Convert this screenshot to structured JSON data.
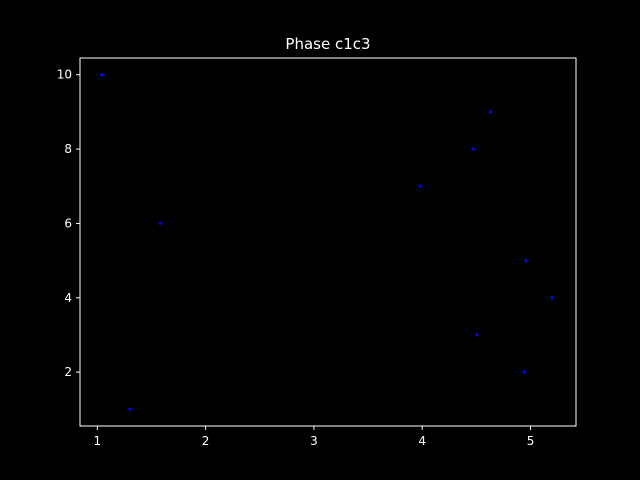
{
  "chart_data": {
    "type": "scatter",
    "title": "Phase c1c3",
    "xlabel": "",
    "ylabel": "",
    "xlim": [
      0.84,
      5.42
    ],
    "ylim": [
      0.55,
      10.45
    ],
    "xticks": [
      1,
      2,
      3,
      4,
      5
    ],
    "yticks": [
      2,
      4,
      6,
      8,
      10
    ],
    "grid": false,
    "background": "#000000",
    "axis_color": "#ffffff",
    "text_color": "#ffffff",
    "marker_color": "#0000ff",
    "series": [
      {
        "points": [
          {
            "x": 1.04,
            "y": 10
          },
          {
            "x": 1.3,
            "y": 1
          },
          {
            "x": 1.58,
            "y": 6
          },
          {
            "x": 3.98,
            "y": 7
          },
          {
            "x": 4.47,
            "y": 8
          },
          {
            "x": 4.63,
            "y": 9
          },
          {
            "x": 4.5,
            "y": 3
          },
          {
            "x": 4.94,
            "y": 2
          },
          {
            "x": 4.96,
            "y": 5
          },
          {
            "x": 5.2,
            "y": 4
          }
        ]
      }
    ]
  }
}
